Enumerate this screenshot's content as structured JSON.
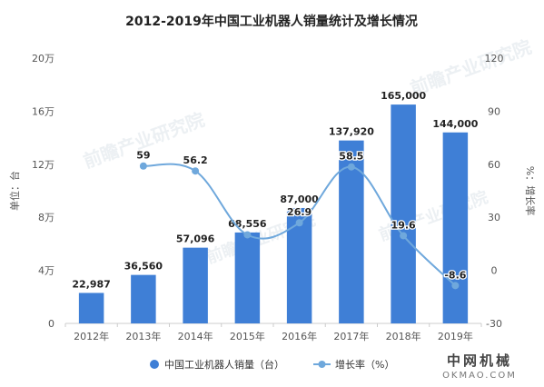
{
  "chart_data": {
    "type": "bar",
    "title": "2012-2019年中国工业机器人销量统计及增长情况",
    "categories": [
      "2012年",
      "2013年",
      "2014年",
      "2015年",
      "2016年",
      "2017年",
      "2018年",
      "2019年"
    ],
    "series": [
      {
        "name": "中国工业机器人销量（台）",
        "type": "bar",
        "axis": "left",
        "values": [
          22987,
          36560,
          57096,
          68556,
          87000,
          137920,
          165000,
          144000
        ],
        "labels": [
          "22,987",
          "36,560",
          "57,096",
          "68,556",
          "87,000",
          "137,920",
          "165,000",
          "144,000"
        ]
      },
      {
        "name": "增长率（%）",
        "type": "line",
        "axis": "right",
        "values": [
          null,
          59,
          56.2,
          20.1,
          26.9,
          58.5,
          19.6,
          -8.6
        ],
        "labels": [
          "",
          "59",
          "56.2",
          "",
          "26.9",
          "58.5",
          "19.6",
          "-8.6"
        ]
      }
    ],
    "ylabel_left": "单位：台",
    "ylabel_right": "%：增长率",
    "ylim_left": [
      0,
      200000
    ],
    "ylim_right": [
      -30,
      120
    ],
    "yticks_left": [
      "0",
      "4万",
      "8万",
      "12万",
      "16万",
      "20万"
    ],
    "yticks_right": [
      "-30",
      "0",
      "30",
      "60",
      "90",
      "120"
    ],
    "grid": false,
    "legend_position": "bottom",
    "colors": {
      "bar": "#3f7fd6",
      "line": "#6fa8dc"
    }
  },
  "legend": {
    "bar_label": "中国工业机器人销量（台）",
    "line_label": "增长率（%）"
  },
  "watermark": {
    "text": "前瞻产业研究院"
  },
  "logo": {
    "cn": "中网机械",
    "en": "OKMAO.COM"
  }
}
